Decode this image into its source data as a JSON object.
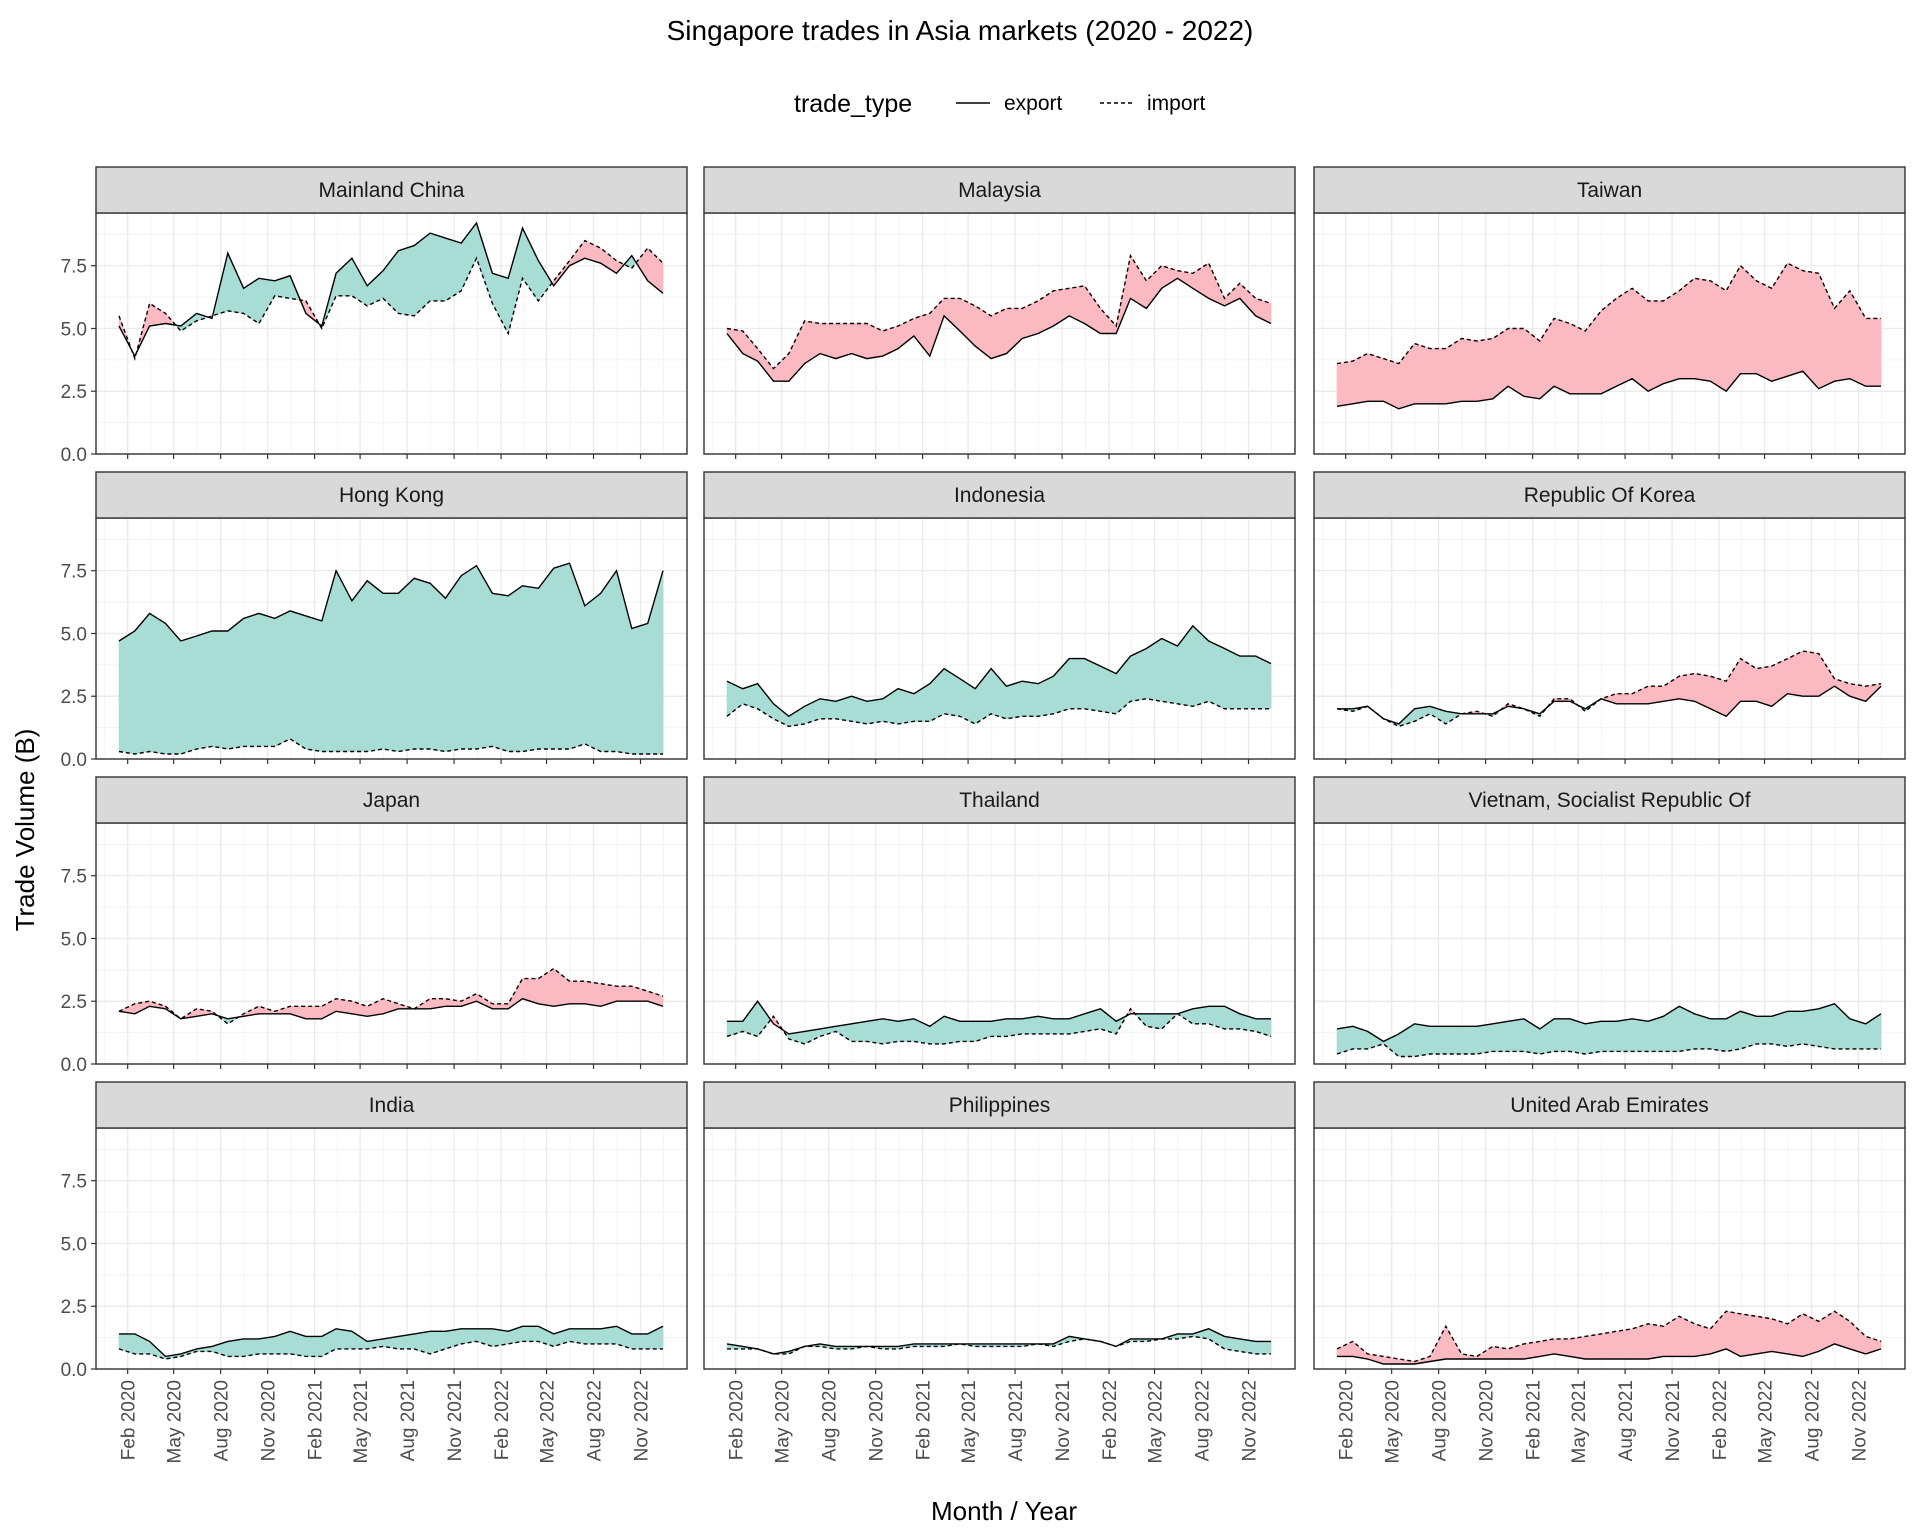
{
  "chart_data": {
    "type": "area",
    "title": "Singapore trades in Asia markets (2020 - 2022)",
    "xlabel": "Month / Year",
    "ylabel": "Trade Volume (B)",
    "legend": {
      "position": "top",
      "title": "trade_type",
      "entries": [
        {
          "label": "export",
          "line": "solid"
        },
        {
          "label": "import",
          "line": "dashed"
        }
      ]
    },
    "colors": {
      "export_higher_fill": "#a8ddd5",
      "import_higher_fill": "#fbb9c1",
      "strip_fill": "#d9d9d9",
      "grid": "#ebebeb",
      "line": "#000000"
    },
    "grid": true,
    "ylim": [
      0,
      9.6
    ],
    "y_ticks": [
      0,
      2.5,
      5,
      7.5
    ],
    "y_tick_labels": [
      "0.0",
      "2.5",
      "5.0",
      "7.5"
    ],
    "x_range": [
      "2019-12-01",
      "2023-01-31"
    ],
    "x_ticks": [
      "2020-02-01",
      "2020-05-01",
      "2020-08-01",
      "2020-11-01",
      "2021-02-01",
      "2021-05-01",
      "2021-08-01",
      "2021-11-01",
      "2022-02-01",
      "2022-05-01",
      "2022-08-01",
      "2022-11-01"
    ],
    "x_tick_labels": [
      "Feb 2020",
      "May 2020",
      "Aug 2020",
      "Nov 2020",
      "Feb 2021",
      "May 2021",
      "Aug 2021",
      "Nov 2021",
      "Feb 2022",
      "May 2022",
      "Aug 2022",
      "Nov 2022"
    ],
    "x": [
      "2020-01",
      "2020-02",
      "2020-03",
      "2020-04",
      "2020-05",
      "2020-06",
      "2020-07",
      "2020-08",
      "2020-09",
      "2020-10",
      "2020-11",
      "2020-12",
      "2021-01",
      "2021-02",
      "2021-03",
      "2021-04",
      "2021-05",
      "2021-06",
      "2021-07",
      "2021-08",
      "2021-09",
      "2021-10",
      "2021-11",
      "2021-12",
      "2022-01",
      "2022-02",
      "2022-03",
      "2022-04",
      "2022-05",
      "2022-06",
      "2022-07",
      "2022-08",
      "2022-09",
      "2022-10",
      "2022-11",
      "2022-12"
    ],
    "panels": [
      {
        "name": "Mainland China",
        "export": [
          5.1,
          3.9,
          5.1,
          5.2,
          5.1,
          5.6,
          5.4,
          8.0,
          6.6,
          7.0,
          6.9,
          7.1,
          5.6,
          5.1,
          7.2,
          7.8,
          6.7,
          7.3,
          8.1,
          8.3,
          8.8,
          8.6,
          8.4,
          9.2,
          7.2,
          7.0,
          9.0,
          7.7,
          6.7,
          7.5,
          7.8,
          7.6,
          7.2,
          7.9,
          6.9,
          6.4
        ],
        "import": [
          5.5,
          3.8,
          6.0,
          5.6,
          4.9,
          5.3,
          5.5,
          5.7,
          5.6,
          5.2,
          6.3,
          6.2,
          6.1,
          5.0,
          6.3,
          6.3,
          5.9,
          6.2,
          5.6,
          5.5,
          6.1,
          6.1,
          6.5,
          7.8,
          6.0,
          4.8,
          7.0,
          6.1,
          6.9,
          7.7,
          8.5,
          8.2,
          7.7,
          7.4,
          8.2,
          7.6
        ]
      },
      {
        "name": "Malaysia",
        "export": [
          4.8,
          4.0,
          3.7,
          2.9,
          2.9,
          3.6,
          4.0,
          3.8,
          4.0,
          3.8,
          3.9,
          4.2,
          4.7,
          3.9,
          5.5,
          4.9,
          4.3,
          3.8,
          4.0,
          4.6,
          4.8,
          5.1,
          5.5,
          5.2,
          4.8,
          4.8,
          6.2,
          5.8,
          6.6,
          7.0,
          6.6,
          6.2,
          5.9,
          6.2,
          5.5,
          5.2
        ],
        "import": [
          5.0,
          4.9,
          4.2,
          3.4,
          4.0,
          5.3,
          5.2,
          5.2,
          5.2,
          5.2,
          4.9,
          5.1,
          5.4,
          5.6,
          6.2,
          6.2,
          5.9,
          5.5,
          5.8,
          5.8,
          6.1,
          6.5,
          6.6,
          6.7,
          5.8,
          5.1,
          7.9,
          6.9,
          7.5,
          7.3,
          7.2,
          7.6,
          6.2,
          6.8,
          6.2,
          6.0
        ]
      },
      {
        "name": "Taiwan",
        "export": [
          1.9,
          2.0,
          2.1,
          2.1,
          1.8,
          2.0,
          2.0,
          2.0,
          2.1,
          2.1,
          2.2,
          2.7,
          2.3,
          2.2,
          2.7,
          2.4,
          2.4,
          2.4,
          2.7,
          3.0,
          2.5,
          2.8,
          3.0,
          3.0,
          2.9,
          2.5,
          3.2,
          3.2,
          2.9,
          3.1,
          3.3,
          2.6,
          2.9,
          3.0,
          2.7,
          2.7
        ],
        "import": [
          3.6,
          3.7,
          4.0,
          3.8,
          3.6,
          4.4,
          4.2,
          4.2,
          4.6,
          4.5,
          4.6,
          5.0,
          5.0,
          4.5,
          5.4,
          5.2,
          4.9,
          5.7,
          6.2,
          6.6,
          6.1,
          6.1,
          6.5,
          7.0,
          6.9,
          6.5,
          7.5,
          6.9,
          6.6,
          7.6,
          7.3,
          7.2,
          5.8,
          6.5,
          5.4,
          5.4
        ]
      },
      {
        "name": "Hong Kong",
        "export": [
          4.7,
          5.1,
          5.8,
          5.4,
          4.7,
          4.9,
          5.1,
          5.1,
          5.6,
          5.8,
          5.6,
          5.9,
          5.7,
          5.5,
          7.5,
          6.3,
          7.1,
          6.6,
          6.6,
          7.2,
          7.0,
          6.4,
          7.3,
          7.7,
          6.6,
          6.5,
          6.9,
          6.8,
          7.6,
          7.8,
          6.1,
          6.6,
          7.5,
          5.2,
          5.4,
          7.5
        ],
        "import": [
          0.3,
          0.2,
          0.3,
          0.2,
          0.2,
          0.4,
          0.5,
          0.4,
          0.5,
          0.5,
          0.5,
          0.8,
          0.4,
          0.3,
          0.3,
          0.3,
          0.3,
          0.4,
          0.3,
          0.4,
          0.4,
          0.3,
          0.4,
          0.4,
          0.5,
          0.3,
          0.3,
          0.4,
          0.4,
          0.4,
          0.6,
          0.3,
          0.3,
          0.2,
          0.2,
          0.2
        ]
      },
      {
        "name": "Indonesia",
        "export": [
          3.1,
          2.8,
          3.0,
          2.2,
          1.7,
          2.1,
          2.4,
          2.3,
          2.5,
          2.3,
          2.4,
          2.8,
          2.6,
          3.0,
          3.6,
          3.2,
          2.8,
          3.6,
          2.9,
          3.1,
          3.0,
          3.3,
          4.0,
          4.0,
          3.7,
          3.4,
          4.1,
          4.4,
          4.8,
          4.5,
          5.3,
          4.7,
          4.4,
          4.1,
          4.1,
          3.8
        ],
        "import": [
          1.7,
          2.2,
          2.0,
          1.6,
          1.3,
          1.4,
          1.6,
          1.6,
          1.5,
          1.4,
          1.5,
          1.4,
          1.5,
          1.5,
          1.8,
          1.7,
          1.4,
          1.8,
          1.6,
          1.7,
          1.7,
          1.8,
          2.0,
          2.0,
          1.9,
          1.8,
          2.3,
          2.4,
          2.3,
          2.2,
          2.1,
          2.3,
          2.0,
          2.0,
          2.0,
          2.0
        ]
      },
      {
        "name": "Republic Of Korea",
        "export": [
          2.0,
          2.0,
          2.1,
          1.6,
          1.4,
          2.0,
          2.1,
          1.9,
          1.8,
          1.8,
          1.8,
          2.1,
          2.0,
          1.8,
          2.3,
          2.3,
          2.0,
          2.4,
          2.2,
          2.2,
          2.2,
          2.3,
          2.4,
          2.3,
          2.0,
          1.7,
          2.3,
          2.3,
          2.1,
          2.6,
          2.5,
          2.5,
          2.9,
          2.5,
          2.3,
          2.9
        ],
        "import": [
          2.0,
          1.9,
          2.1,
          1.6,
          1.3,
          1.5,
          1.8,
          1.4,
          1.8,
          1.9,
          1.7,
          2.2,
          2.0,
          1.7,
          2.4,
          2.4,
          1.9,
          2.4,
          2.6,
          2.6,
          2.9,
          2.9,
          3.3,
          3.4,
          3.3,
          3.1,
          4.0,
          3.6,
          3.7,
          4.0,
          4.3,
          4.2,
          3.2,
          3.0,
          2.9,
          3.0
        ]
      },
      {
        "name": "Japan",
        "export": [
          2.1,
          2.0,
          2.3,
          2.2,
          1.8,
          1.9,
          2.0,
          1.8,
          1.9,
          2.0,
          2.0,
          2.0,
          1.8,
          1.8,
          2.1,
          2.0,
          1.9,
          2.0,
          2.2,
          2.2,
          2.2,
          2.3,
          2.3,
          2.5,
          2.2,
          2.2,
          2.6,
          2.4,
          2.3,
          2.4,
          2.4,
          2.3,
          2.5,
          2.5,
          2.5,
          2.3
        ],
        "import": [
          2.1,
          2.4,
          2.5,
          2.3,
          1.8,
          2.2,
          2.1,
          1.6,
          2.0,
          2.3,
          2.1,
          2.3,
          2.3,
          2.3,
          2.6,
          2.5,
          2.3,
          2.6,
          2.4,
          2.2,
          2.6,
          2.6,
          2.5,
          2.8,
          2.4,
          2.4,
          3.4,
          3.4,
          3.8,
          3.3,
          3.3,
          3.2,
          3.1,
          3.1,
          2.9,
          2.7
        ]
      },
      {
        "name": "Thailand",
        "export": [
          1.7,
          1.7,
          2.5,
          1.6,
          1.2,
          1.3,
          1.4,
          1.5,
          1.6,
          1.7,
          1.8,
          1.7,
          1.8,
          1.5,
          1.9,
          1.7,
          1.7,
          1.7,
          1.8,
          1.8,
          1.9,
          1.8,
          1.8,
          2.0,
          2.2,
          1.7,
          2.0,
          2.0,
          2.0,
          2.0,
          2.2,
          2.3,
          2.3,
          2.0,
          1.8,
          1.8
        ],
        "import": [
          1.1,
          1.3,
          1.1,
          1.9,
          1.0,
          0.8,
          1.1,
          1.3,
          0.9,
          0.9,
          0.8,
          0.9,
          0.9,
          0.8,
          0.8,
          0.9,
          0.9,
          1.1,
          1.1,
          1.2,
          1.2,
          1.2,
          1.2,
          1.3,
          1.4,
          1.2,
          2.2,
          1.5,
          1.4,
          2.0,
          1.6,
          1.6,
          1.4,
          1.4,
          1.3,
          1.1
        ]
      },
      {
        "name": "Vietnam, Socialist Republic Of",
        "export": [
          1.4,
          1.5,
          1.3,
          0.9,
          1.2,
          1.6,
          1.5,
          1.5,
          1.5,
          1.5,
          1.6,
          1.7,
          1.8,
          1.4,
          1.8,
          1.8,
          1.6,
          1.7,
          1.7,
          1.8,
          1.7,
          1.9,
          2.3,
          2.0,
          1.8,
          1.8,
          2.1,
          1.9,
          1.9,
          2.1,
          2.1,
          2.2,
          2.4,
          1.8,
          1.6,
          2.0
        ],
        "import": [
          0.4,
          0.6,
          0.6,
          0.8,
          0.3,
          0.3,
          0.4,
          0.4,
          0.4,
          0.4,
          0.5,
          0.5,
          0.5,
          0.4,
          0.5,
          0.5,
          0.4,
          0.5,
          0.5,
          0.5,
          0.5,
          0.5,
          0.5,
          0.6,
          0.6,
          0.5,
          0.6,
          0.8,
          0.8,
          0.7,
          0.8,
          0.7,
          0.6,
          0.6,
          0.6,
          0.6
        ]
      },
      {
        "name": "India",
        "export": [
          1.4,
          1.4,
          1.1,
          0.5,
          0.6,
          0.8,
          0.9,
          1.1,
          1.2,
          1.2,
          1.3,
          1.5,
          1.3,
          1.3,
          1.6,
          1.5,
          1.1,
          1.2,
          1.3,
          1.4,
          1.5,
          1.5,
          1.6,
          1.6,
          1.6,
          1.5,
          1.7,
          1.7,
          1.4,
          1.6,
          1.6,
          1.6,
          1.7,
          1.4,
          1.4,
          1.7
        ],
        "import": [
          0.8,
          0.6,
          0.6,
          0.4,
          0.5,
          0.7,
          0.7,
          0.5,
          0.5,
          0.6,
          0.6,
          0.6,
          0.5,
          0.5,
          0.8,
          0.8,
          0.8,
          0.9,
          0.8,
          0.8,
          0.6,
          0.8,
          1.0,
          1.1,
          0.9,
          1.0,
          1.1,
          1.1,
          0.9,
          1.1,
          1.0,
          1.0,
          1.0,
          0.8,
          0.8,
          0.8
        ]
      },
      {
        "name": "Philippines",
        "export": [
          1.0,
          0.9,
          0.8,
          0.6,
          0.7,
          0.9,
          1.0,
          0.9,
          0.9,
          0.9,
          0.9,
          0.9,
          1.0,
          1.0,
          1.0,
          1.0,
          1.0,
          1.0,
          1.0,
          1.0,
          1.0,
          1.0,
          1.3,
          1.2,
          1.1,
          0.9,
          1.2,
          1.2,
          1.2,
          1.4,
          1.4,
          1.6,
          1.3,
          1.2,
          1.1,
          1.1
        ],
        "import": [
          0.8,
          0.8,
          0.8,
          0.6,
          0.6,
          0.9,
          0.9,
          0.8,
          0.8,
          0.9,
          0.8,
          0.8,
          0.9,
          0.9,
          0.9,
          1.0,
          0.9,
          0.9,
          0.9,
          0.9,
          1.0,
          0.9,
          1.1,
          1.2,
          1.1,
          0.9,
          1.1,
          1.1,
          1.2,
          1.2,
          1.3,
          1.2,
          0.8,
          0.7,
          0.6,
          0.6
        ]
      },
      {
        "name": "United Arab Emirates",
        "export": [
          0.5,
          0.5,
          0.4,
          0.2,
          0.2,
          0.2,
          0.3,
          0.4,
          0.4,
          0.4,
          0.4,
          0.4,
          0.4,
          0.5,
          0.6,
          0.5,
          0.4,
          0.4,
          0.4,
          0.4,
          0.4,
          0.5,
          0.5,
          0.5,
          0.6,
          0.8,
          0.5,
          0.6,
          0.7,
          0.6,
          0.5,
          0.7,
          1.0,
          0.8,
          0.6,
          0.8
        ],
        "import": [
          0.8,
          1.1,
          0.6,
          0.5,
          0.4,
          0.3,
          0.5,
          1.7,
          0.6,
          0.5,
          0.9,
          0.8,
          1.0,
          1.1,
          1.2,
          1.2,
          1.3,
          1.4,
          1.5,
          1.6,
          1.8,
          1.7,
          2.1,
          1.8,
          1.6,
          2.3,
          2.2,
          2.1,
          2.0,
          1.8,
          2.2,
          1.9,
          2.3,
          1.9,
          1.3,
          1.1
        ]
      }
    ]
  }
}
